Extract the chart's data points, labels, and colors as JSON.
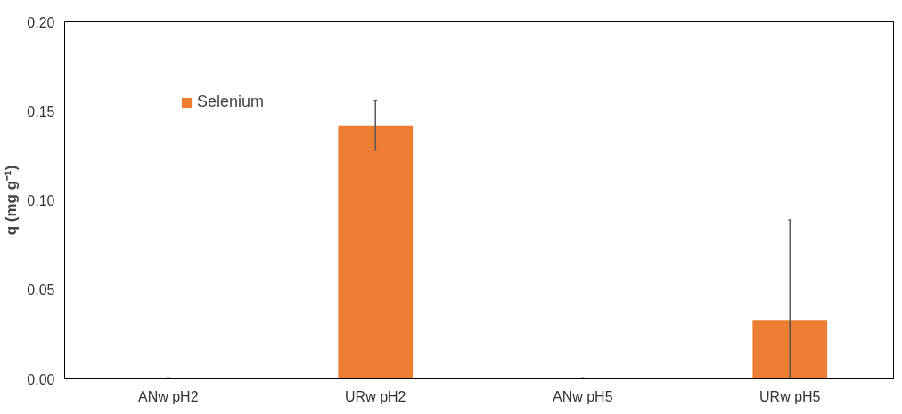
{
  "chart_data": {
    "type": "bar",
    "ylabel": "q (mg g⁻¹)",
    "categories": [
      "ANw pH2",
      "URw pH2",
      "ANw pH5",
      "URw pH5"
    ],
    "series": [
      {
        "name": "Selenium",
        "color": "#ed7d31",
        "values": [
          0,
          0.142,
          0,
          0.033
        ],
        "errors": [
          0,
          0.014,
          0,
          [
            0.0,
            0.089
          ]
        ]
      }
    ],
    "ylim": [
      0,
      0.2
    ],
    "yticks": [
      {
        "value": 0,
        "label": "0.00"
      },
      {
        "value": 0.05,
        "label": "0.05"
      },
      {
        "value": 0.1,
        "label": "0.10"
      },
      {
        "value": 0.15,
        "label": "0.15"
      },
      {
        "value": 0.2,
        "label": "0.20"
      }
    ],
    "grid": false,
    "legend": "top left"
  }
}
